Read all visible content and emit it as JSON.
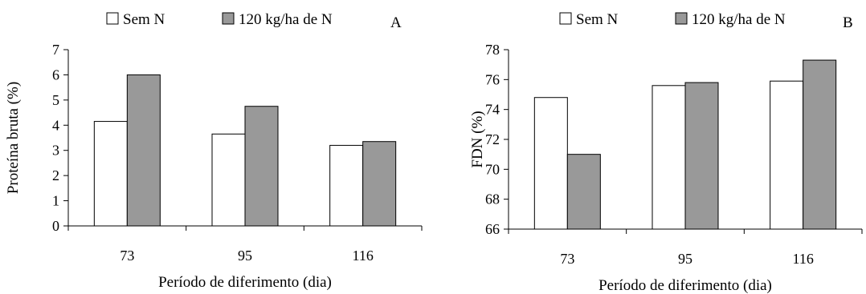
{
  "chart_data": [
    {
      "type": "bar",
      "panel_label": "A",
      "legend": [
        "Sem N",
        "120 kg/ha de N"
      ],
      "legend_position": "top",
      "xlabel": "Período de diferimento (dia)",
      "ylabel": "Proteína bruta (%)",
      "categories": [
        "73",
        "95",
        "116"
      ],
      "ylim": [
        0,
        7
      ],
      "yticks": [
        0,
        1,
        2,
        3,
        4,
        5,
        6,
        7
      ],
      "grid": false,
      "colors": [
        "#ffffff",
        "#999999"
      ],
      "series": [
        {
          "name": "Sem N",
          "values": [
            4.15,
            3.65,
            3.2
          ]
        },
        {
          "name": "120 kg/ha de N",
          "values": [
            6.0,
            4.75,
            3.35
          ]
        }
      ]
    },
    {
      "type": "bar",
      "panel_label": "B",
      "legend": [
        "Sem N",
        "120 kg/ha de N"
      ],
      "legend_position": "top",
      "xlabel": "Período de diferimento (dia)",
      "ylabel": "FDN (%)",
      "categories": [
        "73",
        "95",
        "116"
      ],
      "ylim": [
        66,
        78
      ],
      "yticks": [
        66,
        68,
        70,
        72,
        74,
        76,
        78
      ],
      "grid": false,
      "colors": [
        "#ffffff",
        "#999999"
      ],
      "series": [
        {
          "name": "Sem N",
          "values": [
            74.8,
            75.6,
            75.9
          ]
        },
        {
          "name": "120 kg/ha de N",
          "values": [
            71.0,
            75.8,
            77.3
          ]
        }
      ]
    }
  ]
}
